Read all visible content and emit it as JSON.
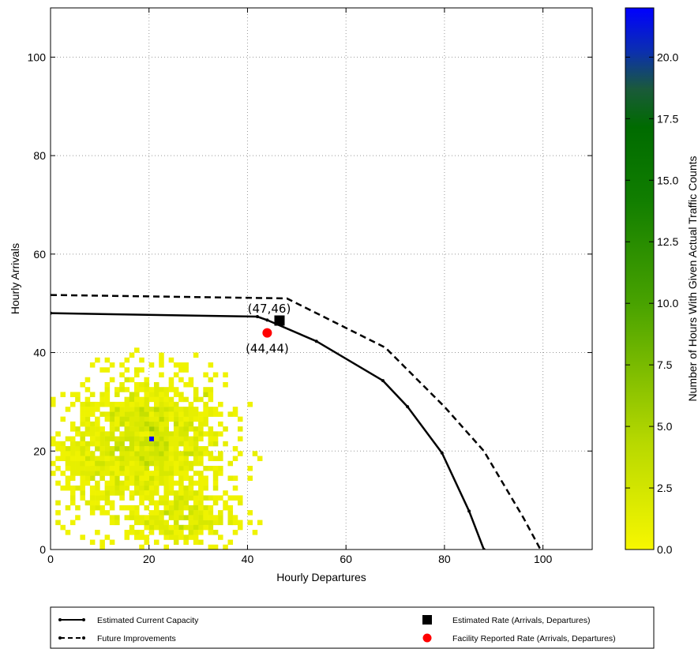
{
  "chart_data": {
    "type": "scatter",
    "xlabel": "Hourly Departures",
    "ylabel": "Hourly Arrivals",
    "xlim": [
      0,
      110
    ],
    "ylim": [
      0,
      110
    ],
    "xticks": [
      0,
      20,
      40,
      60,
      80,
      100
    ],
    "yticks": [
      0,
      20,
      40,
      60,
      80,
      100
    ],
    "grid": true,
    "colorbar": {
      "label": "Number of Hours With Given Actual Traffic Counts",
      "min": 0.0,
      "max": 22.0,
      "ticks": [
        "0.0",
        "2.5",
        "5.0",
        "7.5",
        "10.0",
        "12.5",
        "15.0",
        "17.5",
        "20.0"
      ],
      "colors": [
        "#f5f500",
        "#9fcd00",
        "#2e9600",
        "#056e00",
        "#0000ff"
      ]
    },
    "series": [
      {
        "name": "Estimated Current Capacity",
        "style": "solid",
        "x": [
          0,
          42,
          44,
          54,
          67.5,
          72.5,
          79.5,
          85,
          88
        ],
        "y": [
          48,
          47.3,
          46.6,
          42.3,
          34.3,
          29,
          19.6,
          7.8,
          0
        ]
      },
      {
        "name": "Future Improvements",
        "style": "dashed",
        "x": [
          0,
          48,
          55,
          68,
          74,
          80,
          88,
          96,
          99.5
        ],
        "y": [
          51.7,
          51,
          47.5,
          41,
          35,
          29,
          20,
          6.5,
          0
        ]
      }
    ],
    "points": [
      {
        "name": "Estimated Rate (Arrivals, Departures)",
        "x": 46.5,
        "y": 46.5,
        "marker": "square",
        "color": "#000000",
        "label": "(47,46)"
      },
      {
        "name": "Facility Reported Rate (Arrivals, Departures)",
        "x": 44,
        "y": 44,
        "marker": "circle",
        "color": "#ff0000",
        "label": "(44,44)"
      }
    ],
    "heatmap": {
      "bin_size": 1,
      "clusters": [
        {
          "cx": 20,
          "cy": 21,
          "sx": 7.5,
          "sy": 7,
          "peak": 18,
          "n": 1400
        },
        {
          "cx": 26,
          "cy": 6,
          "sx": 5.5,
          "sy": 3,
          "peak": 6,
          "n": 320
        },
        {
          "cx": 8,
          "cy": 18,
          "sx": 4,
          "sy": 6,
          "peak": 5,
          "n": 250
        }
      ],
      "hotspot": {
        "x": 20,
        "y": 22,
        "value": 22
      }
    },
    "legend": {
      "placement": "bottom",
      "entries": [
        {
          "label": "Estimated Current Capacity",
          "symbol": "solid-line"
        },
        {
          "label": "Future Improvements",
          "symbol": "dashed-line"
        },
        {
          "label": "Estimated Rate (Arrivals, Departures)",
          "symbol": "black-square"
        },
        {
          "label": "Facility Reported Rate (Arrivals, Departures)",
          "symbol": "red-circle"
        }
      ]
    }
  }
}
